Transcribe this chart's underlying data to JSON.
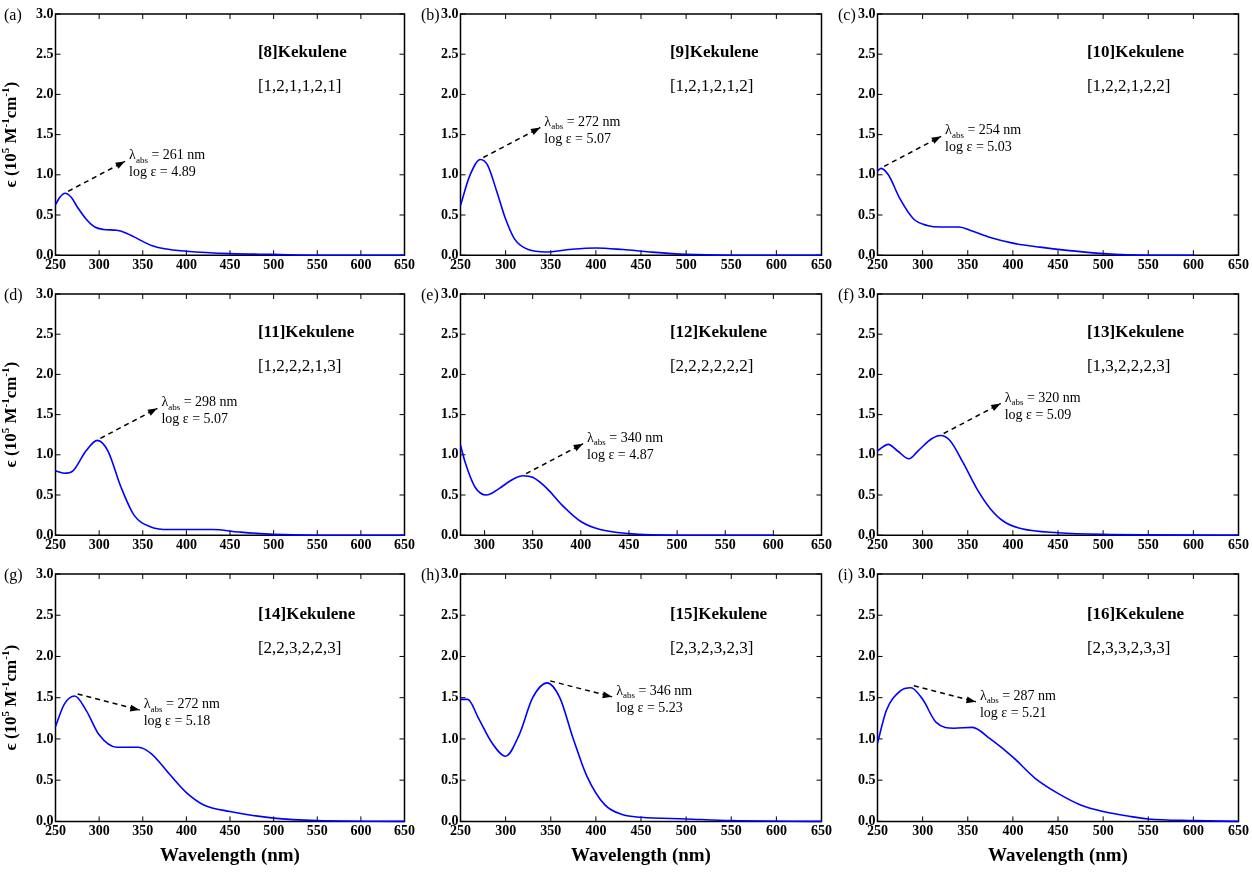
{
  "chart_data": [
    {
      "type": "line",
      "title": "(a)",
      "ylabel": "ϵ (10$^{5}$ M$^{-1}$cm$^{-1}$)",
      "xlim": [
        250,
        650
      ],
      "xticks": [
        250,
        300,
        350,
        400,
        450,
        500,
        550,
        600,
        650
      ],
      "ylim": [
        0,
        3
      ],
      "yticks": [
        {
          "value": 0,
          "label": "0.0"
        },
        {
          "value": 0.5,
          "label": "0.5"
        },
        {
          "value": 1,
          "label": "1.0"
        },
        {
          "value": 1.5,
          "label": "1.5"
        },
        {
          "value": 2,
          "label": "2.0"
        },
        {
          "value": 2.5,
          "label": "2.5"
        },
        {
          "value": 3,
          "label": "3.0"
        }
      ],
      "marker": "none",
      "legend": false,
      "annotations": [
        "[8]Kekulene",
        "[1,2,1,1,2,1]",
        {
          "text": "λ$_{abs}$ = 261 nm",
          "x": 261,
          "y": 0.77
        },
        "log ε = 4.89"
      ],
      "x": [
        250,
        255,
        261,
        268,
        275,
        285,
        295,
        305,
        320,
        330,
        345,
        360,
        375,
        400,
        450,
        500,
        550,
        650
      ],
      "series": [
        {
          "color": "#0000ff",
          "values": [
            0.63,
            0.72,
            0.77,
            0.72,
            0.6,
            0.45,
            0.35,
            0.32,
            0.31,
            0.28,
            0.2,
            0.12,
            0.08,
            0.05,
            0.02,
            0.01,
            0,
            0
          ]
        }
      ]
    },
    {
      "type": "line",
      "title": "(b)",
      "xlim": [
        250,
        650
      ],
      "xticks": [
        250,
        300,
        350,
        400,
        450,
        500,
        550,
        600,
        650
      ],
      "ylim": [
        0,
        3
      ],
      "yticks": [
        {
          "value": 0,
          "label": "0.0"
        },
        {
          "value": 0.5,
          "label": "0.5"
        },
        {
          "value": 1,
          "label": "1.0"
        },
        {
          "value": 1.5,
          "label": "1.5"
        },
        {
          "value": 2,
          "label": "2.0"
        },
        {
          "value": 2.5,
          "label": "2.5"
        },
        {
          "value": 3,
          "label": "3.0"
        }
      ],
      "marker": "none",
      "legend": false,
      "annotations": [
        "[9]Kekulene",
        "[1,2,1,2,1,2]",
        {
          "text": "λ$_{abs}$ = 272 nm",
          "x": 272,
          "y": 1.19
        },
        "log ε = 5.07"
      ],
      "x": [
        250,
        260,
        272,
        280,
        290,
        300,
        310,
        325,
        345,
        370,
        400,
        430,
        460,
        500,
        550,
        650
      ],
      "series": [
        {
          "color": "#0000ff",
          "values": [
            0.62,
            0.98,
            1.19,
            1.12,
            0.8,
            0.45,
            0.2,
            0.07,
            0.04,
            0.07,
            0.09,
            0.07,
            0.04,
            0.01,
            0,
            0
          ]
        }
      ]
    },
    {
      "type": "line",
      "title": "(c)",
      "xlim": [
        250,
        650
      ],
      "xticks": [
        250,
        300,
        350,
        400,
        450,
        500,
        550,
        600,
        650
      ],
      "ylim": [
        0,
        3
      ],
      "yticks": [
        {
          "value": 0,
          "label": "0.0"
        },
        {
          "value": 0.5,
          "label": "0.5"
        },
        {
          "value": 1,
          "label": "1.0"
        },
        {
          "value": 1.5,
          "label": "1.5"
        },
        {
          "value": 2,
          "label": "2.0"
        },
        {
          "value": 2.5,
          "label": "2.5"
        },
        {
          "value": 3,
          "label": "3.0"
        }
      ],
      "marker": "none",
      "legend": false,
      "annotations": [
        "[10]Kekulene",
        "[1,2,2,1,2,2]",
        {
          "text": "λ$_{abs}$ = 254 nm",
          "x": 254,
          "y": 1.08
        },
        "log ε = 5.03"
      ],
      "x": [
        250,
        254,
        262,
        275,
        290,
        305,
        320,
        340,
        355,
        375,
        400,
        430,
        460,
        500,
        550,
        600
      ],
      "series": [
        {
          "color": "#0000ff",
          "values": [
            1.05,
            1.08,
            1.0,
            0.7,
            0.45,
            0.37,
            0.35,
            0.35,
            0.3,
            0.22,
            0.15,
            0.1,
            0.06,
            0.02,
            0,
            0
          ]
        }
      ]
    },
    {
      "type": "line",
      "title": "(d)",
      "ylabel": "ϵ (10$^{5}$ M$^{-1}$cm$^{-1}$)",
      "xlim": [
        250,
        650
      ],
      "xticks": [
        250,
        300,
        350,
        400,
        450,
        500,
        550,
        600,
        650
      ],
      "ylim": [
        0,
        3
      ],
      "yticks": [
        {
          "value": 0,
          "label": "0.0"
        },
        {
          "value": 0.5,
          "label": "0.5"
        },
        {
          "value": 1,
          "label": "1.0"
        },
        {
          "value": 1.5,
          "label": "1.5"
        },
        {
          "value": 2,
          "label": "2.0"
        },
        {
          "value": 2.5,
          "label": "2.5"
        },
        {
          "value": 3,
          "label": "3.0"
        }
      ],
      "marker": "none",
      "legend": false,
      "annotations": [
        "[11]Kekulene",
        "[1,2,2,2,1,3]",
        {
          "text": "λ$_{abs}$ = 298 nm",
          "x": 298,
          "y": 1.18
        },
        "log ε = 5.07"
      ],
      "x": [
        250,
        260,
        270,
        285,
        298,
        310,
        325,
        340,
        360,
        380,
        400,
        430,
        460,
        500,
        550,
        650
      ],
      "series": [
        {
          "color": "#0000ff",
          "values": [
            0.8,
            0.77,
            0.8,
            1.05,
            1.18,
            1.05,
            0.6,
            0.25,
            0.1,
            0.07,
            0.07,
            0.07,
            0.04,
            0.01,
            0,
            0
          ]
        }
      ]
    },
    {
      "type": "line",
      "title": "(e)",
      "xlim": [
        275,
        650
      ],
      "xticks": [
        300,
        350,
        400,
        450,
        500,
        550,
        600,
        650
      ],
      "ylim": [
        0,
        3
      ],
      "yticks": [
        {
          "value": 0,
          "label": "0.0"
        },
        {
          "value": 0.5,
          "label": "0.5"
        },
        {
          "value": 1,
          "label": "1.0"
        },
        {
          "value": 1.5,
          "label": "1.5"
        },
        {
          "value": 2,
          "label": "2.0"
        },
        {
          "value": 2.5,
          "label": "2.5"
        },
        {
          "value": 3,
          "label": "3.0"
        }
      ],
      "marker": "none",
      "legend": false,
      "annotations": [
        "[12]Kekulene",
        "[2,2,2,2,2,2]",
        {
          "text": "λ$_{abs}$ = 340 nm",
          "x": 340,
          "y": 0.74
        },
        "log ε = 4.87"
      ],
      "x": [
        275,
        280,
        290,
        302,
        315,
        330,
        340,
        350,
        365,
        380,
        400,
        420,
        450,
        500,
        600
      ],
      "series": [
        {
          "color": "#0000ff",
          "values": [
            1.12,
            0.9,
            0.6,
            0.5,
            0.58,
            0.7,
            0.74,
            0.72,
            0.58,
            0.38,
            0.17,
            0.07,
            0.02,
            0,
            0
          ]
        }
      ]
    },
    {
      "type": "line",
      "title": "(f)",
      "xlim": [
        250,
        650
      ],
      "xticks": [
        250,
        300,
        350,
        400,
        450,
        500,
        550,
        600,
        650
      ],
      "ylim": [
        0,
        3
      ],
      "yticks": [
        {
          "value": 0,
          "label": "0.0"
        },
        {
          "value": 0.5,
          "label": "0.5"
        },
        {
          "value": 1,
          "label": "1.0"
        },
        {
          "value": 1.5,
          "label": "1.5"
        },
        {
          "value": 2,
          "label": "2.0"
        },
        {
          "value": 2.5,
          "label": "2.5"
        },
        {
          "value": 3,
          "label": "3.0"
        }
      ],
      "marker": "none",
      "legend": false,
      "annotations": [
        "[13]Kekulene",
        "[1,3,2,2,2,3]",
        {
          "text": "λ$_{abs}$ = 320 nm",
          "x": 320,
          "y": 1.24
        },
        "log ε = 5.09"
      ],
      "x": [
        250,
        262,
        272,
        285,
        295,
        310,
        320,
        330,
        345,
        360,
        375,
        390,
        410,
        450,
        500,
        650
      ],
      "series": [
        {
          "color": "#0000ff",
          "values": [
            1.05,
            1.13,
            1.05,
            0.95,
            1.05,
            1.2,
            1.24,
            1.18,
            0.9,
            0.58,
            0.33,
            0.17,
            0.08,
            0.03,
            0.01,
            0
          ]
        }
      ]
    },
    {
      "type": "line",
      "title": "(g)",
      "ylabel": "ϵ (10$^{5}$ M$^{-1}$cm$^{-1}$)",
      "xlabel": "Wavelength (nm)",
      "xlim": [
        250,
        650
      ],
      "xticks": [
        250,
        300,
        350,
        400,
        450,
        500,
        550,
        600,
        650
      ],
      "ylim": [
        0,
        3
      ],
      "yticks": [
        {
          "value": 0,
          "label": "0.0"
        },
        {
          "value": 0.5,
          "label": "0.5"
        },
        {
          "value": 1,
          "label": "1.0"
        },
        {
          "value": 1.5,
          "label": "1.5"
        },
        {
          "value": 2,
          "label": "2.0"
        },
        {
          "value": 2.5,
          "label": "2.5"
        },
        {
          "value": 3,
          "label": "3.0"
        }
      ],
      "marker": "none",
      "legend": false,
      "annotations": [
        "[14]Kekulene",
        "[2,2,3,2,2,3]",
        {
          "text": "λ$_{abs}$ = 272 nm",
          "x": 272,
          "y": 1.52
        },
        "log ε = 5.18"
      ],
      "x": [
        250,
        260,
        272,
        285,
        300,
        320,
        345,
        360,
        380,
        400,
        420,
        450,
        500,
        550,
        650
      ],
      "series": [
        {
          "color": "#0000ff",
          "values": [
            1.15,
            1.42,
            1.52,
            1.35,
            1.05,
            0.9,
            0.9,
            0.82,
            0.58,
            0.35,
            0.2,
            0.12,
            0.04,
            0.01,
            0
          ]
        }
      ]
    },
    {
      "type": "line",
      "title": "(h)",
      "xlabel": "Wavelength (nm)",
      "xlim": [
        250,
        650
      ],
      "xticks": [
        250,
        300,
        350,
        400,
        450,
        500,
        550,
        600,
        650
      ],
      "ylim": [
        0,
        3
      ],
      "yticks": [
        {
          "value": 0,
          "label": "0.0"
        },
        {
          "value": 0.5,
          "label": "0.5"
        },
        {
          "value": 1,
          "label": "1.0"
        },
        {
          "value": 1.5,
          "label": "1.5"
        },
        {
          "value": 2,
          "label": "2.0"
        },
        {
          "value": 2.5,
          "label": "2.5"
        },
        {
          "value": 3,
          "label": "3.0"
        }
      ],
      "marker": "none",
      "legend": false,
      "annotations": [
        "[15]Kekulene",
        "[2,3,2,3,2,3]",
        {
          "text": "λ$_{abs}$ = 346 nm",
          "x": 346,
          "y": 1.68
        },
        "log ε = 5.23"
      ],
      "x": [
        250,
        258,
        270,
        285,
        300,
        315,
        330,
        346,
        360,
        375,
        390,
        410,
        430,
        450,
        500,
        550,
        650
      ],
      "series": [
        {
          "color": "#0000ff",
          "values": [
            1.48,
            1.48,
            1.25,
            0.95,
            0.79,
            1.05,
            1.5,
            1.68,
            1.5,
            1.0,
            0.55,
            0.2,
            0.08,
            0.05,
            0.03,
            0.01,
            0
          ]
        }
      ]
    },
    {
      "type": "line",
      "title": "(i)",
      "xlabel": "Wavelength (nm)",
      "xlim": [
        250,
        650
      ],
      "xticks": [
        250,
        300,
        350,
        400,
        450,
        500,
        550,
        600,
        650
      ],
      "ylim": [
        0,
        3
      ],
      "yticks": [
        {
          "value": 0,
          "label": "0.0"
        },
        {
          "value": 0.5,
          "label": "0.5"
        },
        {
          "value": 1,
          "label": "1.0"
        },
        {
          "value": 1.5,
          "label": "1.5"
        },
        {
          "value": 2,
          "label": "2.0"
        },
        {
          "value": 2.5,
          "label": "2.5"
        },
        {
          "value": 3,
          "label": "3.0"
        }
      ],
      "marker": "none",
      "legend": false,
      "annotations": [
        "[16]Kekulene",
        "[2,3,3,2,3,3]",
        {
          "text": "λ$_{abs}$ = 287 nm",
          "x": 287,
          "y": 1.62
        },
        "log ε = 5.21"
      ],
      "x": [
        250,
        260,
        275,
        287,
        300,
        315,
        335,
        355,
        375,
        400,
        425,
        450,
        475,
        500,
        530,
        550,
        600,
        650
      ],
      "series": [
        {
          "color": "#0000ff",
          "values": [
            0.95,
            1.35,
            1.58,
            1.62,
            1.48,
            1.2,
            1.13,
            1.14,
            1.0,
            0.78,
            0.52,
            0.34,
            0.2,
            0.12,
            0.06,
            0.03,
            0.01,
            0
          ]
        }
      ]
    }
  ]
}
